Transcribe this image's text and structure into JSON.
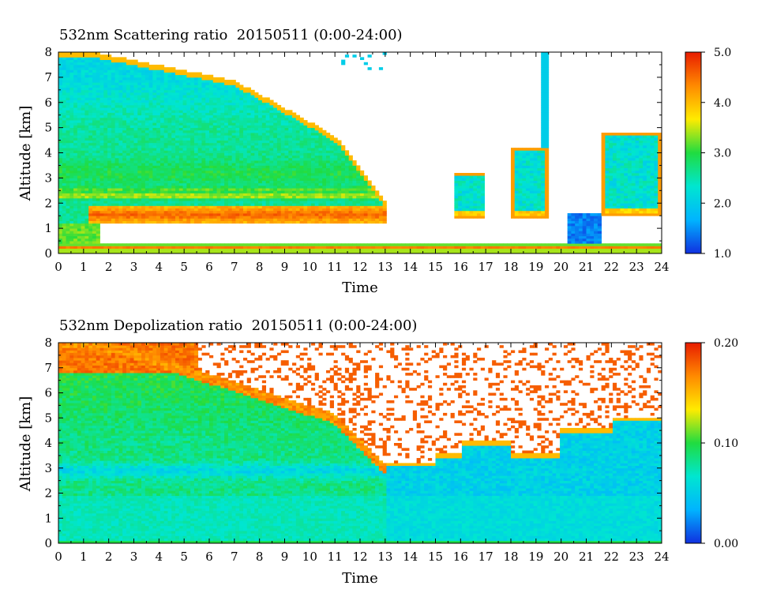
{
  "chart_data": [
    {
      "type": "heatmap",
      "title": "532nm Scattering ratio  20150511 (0:00-24:00)",
      "xlabel": "Time",
      "ylabel": "Altitude [km]",
      "xlim": [
        0,
        24
      ],
      "ylim": [
        0,
        8
      ],
      "x_ticks": [
        "0",
        "1",
        "2",
        "3",
        "4",
        "5",
        "6",
        "7",
        "8",
        "9",
        "10",
        "11",
        "12",
        "13",
        "14",
        "15",
        "16",
        "17",
        "18",
        "19",
        "20",
        "21",
        "22",
        "23",
        "24"
      ],
      "y_ticks": [
        "0",
        "1",
        "2",
        "3",
        "4",
        "5",
        "6",
        "7",
        "8"
      ],
      "colorbar": {
        "min": 1.0,
        "max": 5.0,
        "ticks": [
          "1.0",
          "2.0",
          "3.0",
          "4.0",
          "5.0"
        ]
      },
      "colormap": [
        "#1030e0",
        "#00b4ff",
        "#00e6d0",
        "#20dc40",
        "#ffeb00",
        "#ff8a00",
        "#e81c00"
      ],
      "features": [
        {
          "name": "dust layer",
          "t_start": 0,
          "t_end": 13,
          "alt_top": 7.9,
          "alt_top_end": 2.0,
          "alt_bottom": 1.8,
          "value": 2.2
        },
        {
          "name": "upper layer band",
          "t_start": 0,
          "t_end": 13,
          "alt": 2.3,
          "value": 3.2
        },
        {
          "name": "strong scattering band",
          "t_start": 1.5,
          "t_end": 13,
          "alt": 1.55,
          "value": 4.5
        },
        {
          "name": "surface layer",
          "t_start": 0,
          "t_end": 24,
          "alt": 0.25,
          "value": 4.0
        },
        {
          "name": "cloud 15.7-17",
          "t_start": 15.7,
          "t_end": 17.0,
          "alt_bottom": 1.4,
          "alt_top": 3.2,
          "value": 2.3
        },
        {
          "name": "cloud 18-19.5",
          "t_start": 18.0,
          "t_end": 19.5,
          "alt_bottom": 1.4,
          "alt_top": 4.2,
          "value": 2.2
        },
        {
          "name": "low cloud 20.2-21.6",
          "t_start": 20.2,
          "t_end": 21.6,
          "alt_bottom": 0.1,
          "alt_top": 1.6,
          "value": 1.5
        },
        {
          "name": "cloud 21.6-24",
          "t_start": 21.6,
          "t_end": 24.0,
          "alt_bottom": 1.5,
          "alt_top": 4.8,
          "value": 2.1
        }
      ]
    },
    {
      "type": "heatmap",
      "title": "532nm Depolization ratio  20150511 (0:00-24:00)",
      "xlabel": "Time",
      "ylabel": "Altitude [km]",
      "xlim": [
        0,
        24
      ],
      "ylim": [
        0,
        8
      ],
      "x_ticks": [
        "0",
        "1",
        "2",
        "3",
        "4",
        "5",
        "6",
        "7",
        "8",
        "9",
        "10",
        "11",
        "12",
        "13",
        "14",
        "15",
        "16",
        "17",
        "18",
        "19",
        "20",
        "21",
        "22",
        "23",
        "24"
      ],
      "y_ticks": [
        "0",
        "1",
        "2",
        "3",
        "4",
        "5",
        "6",
        "7",
        "8"
      ],
      "colorbar": {
        "min": 0.0,
        "max": 0.2,
        "ticks": [
          "0.00",
          "0.10",
          "0.20"
        ]
      },
      "colormap": [
        "#1030e0",
        "#00b4ff",
        "#00e6d0",
        "#20dc40",
        "#ffeb00",
        "#ff8a00",
        "#e81c00"
      ],
      "features": [
        {
          "name": "high depolarization top",
          "t_start": 0,
          "t_end": 6,
          "alt": 7.5,
          "value": 0.17
        },
        {
          "name": "dust layer",
          "t_start": 0,
          "t_end": 13,
          "alt_top": 7.9,
          "alt_top_end": 3.0,
          "value": 0.1
        },
        {
          "name": "low depolarization band",
          "t_start": 0,
          "t_end": 13,
          "alt": 2.9,
          "value": 0.05
        },
        {
          "name": "boundary layer",
          "t_start": 0,
          "t_end": 24,
          "alt_bottom": 0.0,
          "alt_top": 2.0,
          "value": 0.05
        },
        {
          "name": "afternoon layer",
          "t_start": 13,
          "t_end": 24,
          "alt_bottom": 0.5,
          "alt_top": 3.5,
          "value": 0.04
        }
      ]
    }
  ]
}
